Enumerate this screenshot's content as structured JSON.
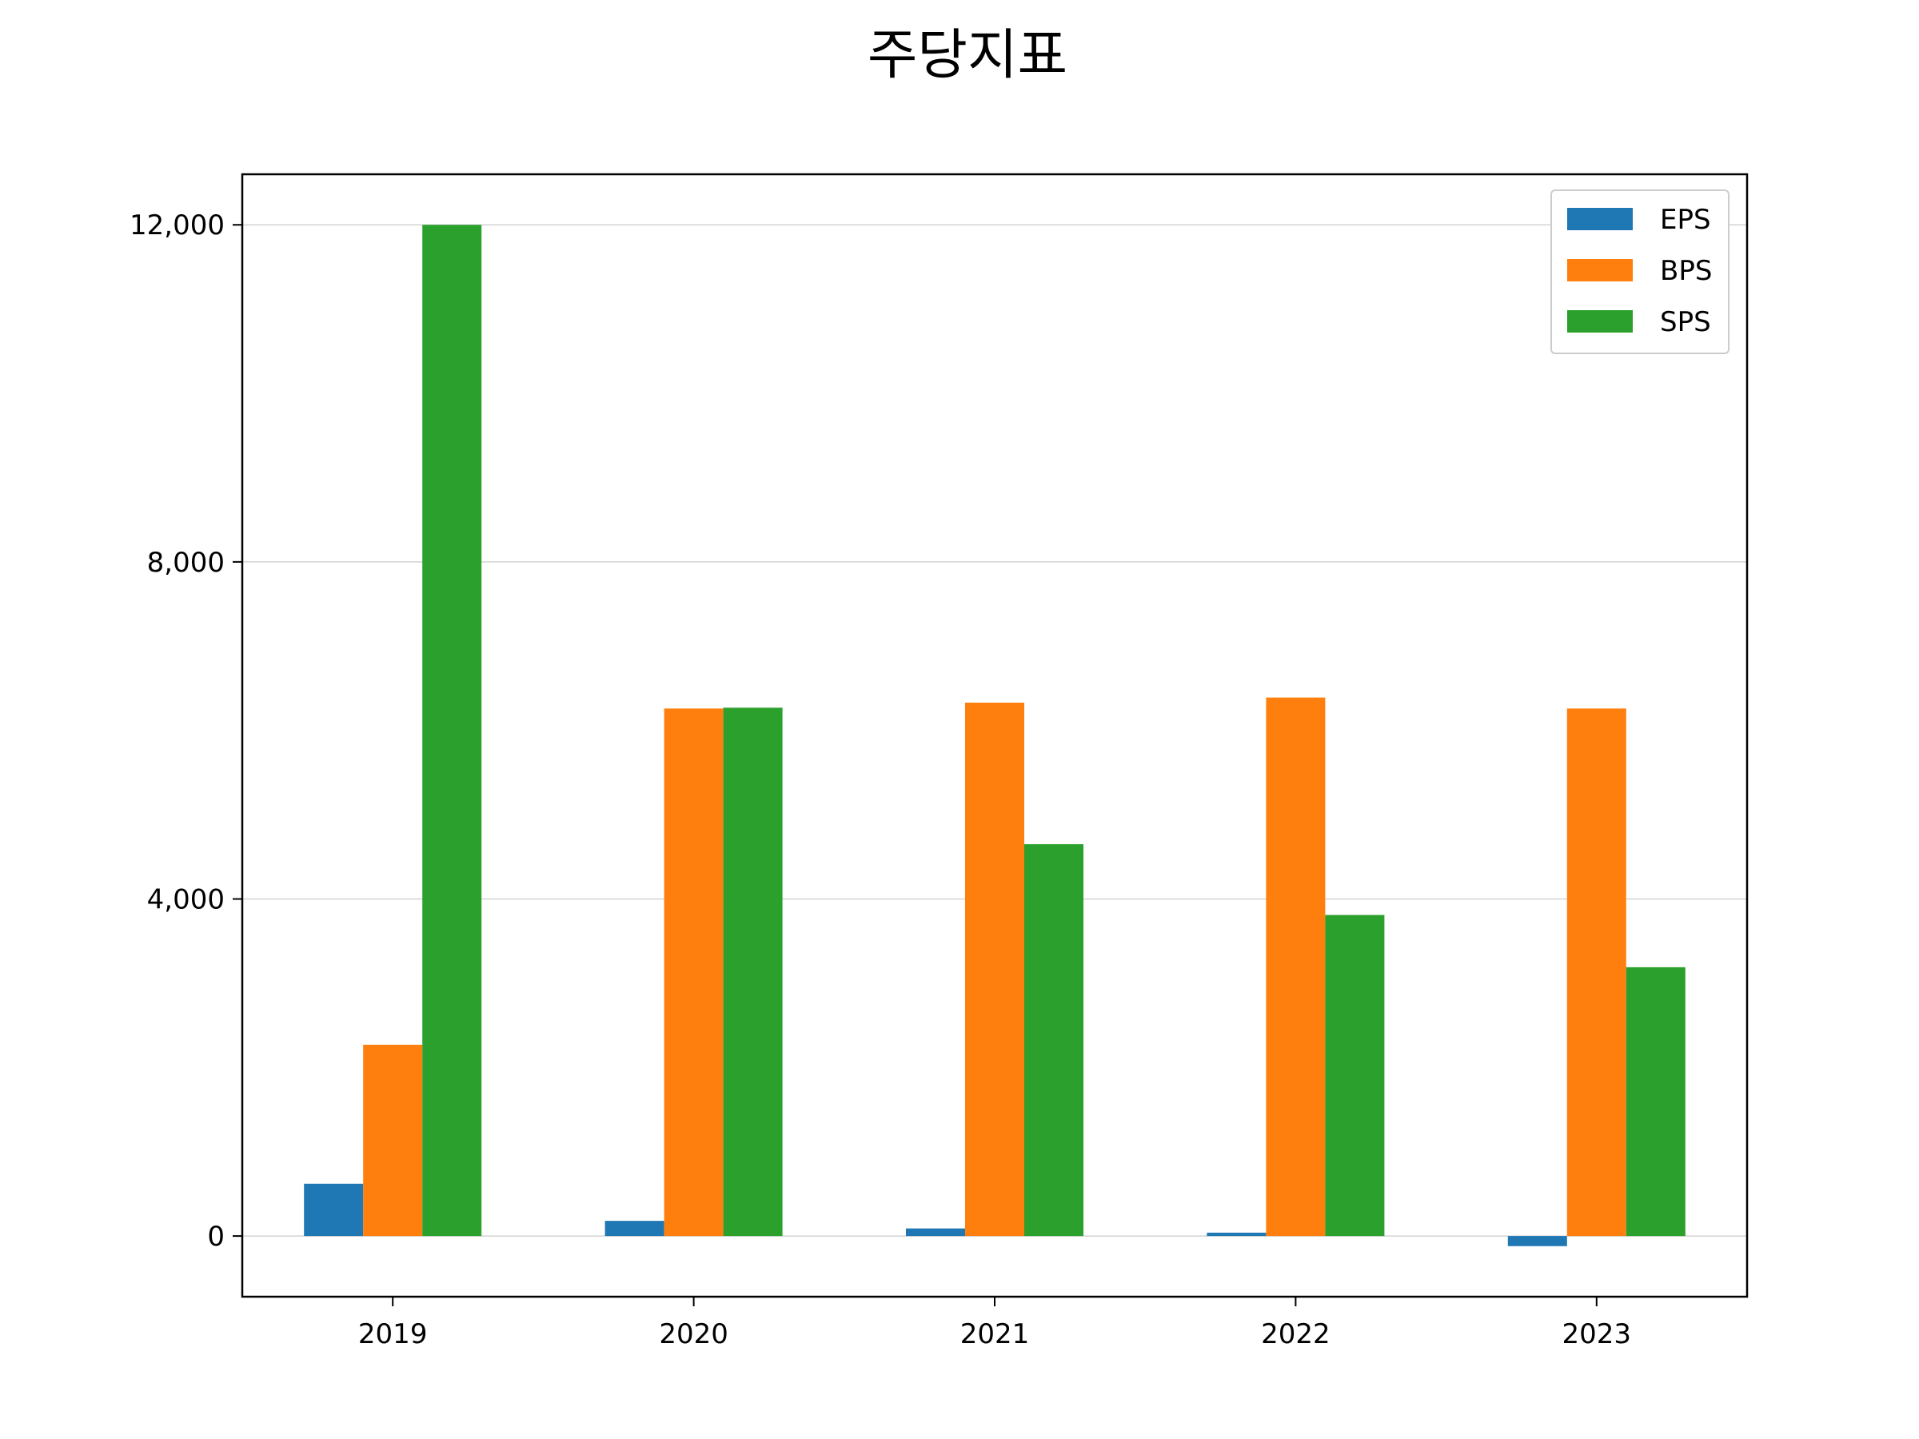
{
  "chart_data": {
    "type": "bar",
    "title": "주당지표",
    "xlabel": "",
    "ylabel": "",
    "categories": [
      "2019",
      "2020",
      "2021",
      "2022",
      "2023"
    ],
    "series": [
      {
        "name": "EPS",
        "values": [
          620,
          180,
          90,
          40,
          -120
        ],
        "color": "#1f77b4"
      },
      {
        "name": "BPS",
        "values": [
          2270,
          6260,
          6330,
          6390,
          6260
        ],
        "color": "#ff7f0e"
      },
      {
        "name": "SPS",
        "values": [
          12000,
          6270,
          4650,
          3810,
          3190
        ],
        "color": "#2ca02c"
      }
    ],
    "ylim": [
      -720,
      12600
    ],
    "yticks": [
      0,
      4000,
      8000,
      12000
    ],
    "ytick_labels": [
      "0",
      "4,000",
      "8,000",
      "12,000"
    ],
    "grid": "horizontal",
    "legend_position": "top-right"
  }
}
